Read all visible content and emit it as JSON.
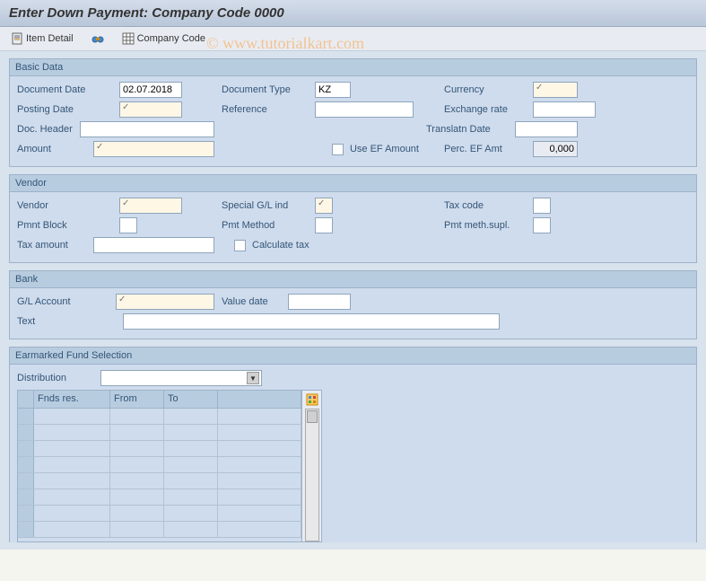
{
  "title": "Enter Down Payment: Company Code 0000",
  "watermark": "© www.tutorialkart.com",
  "toolbar": {
    "item_detail": "Item Detail",
    "company_code": "Company Code"
  },
  "basic_data": {
    "header": "Basic Data",
    "document_date_label": "Document Date",
    "document_date": "02.07.2018",
    "document_type_label": "Document Type",
    "document_type": "KZ",
    "currency_label": "Currency",
    "currency": "",
    "posting_date_label": "Posting Date",
    "posting_date": "",
    "reference_label": "Reference",
    "reference": "",
    "exchange_rate_label": "Exchange rate",
    "exchange_rate": "",
    "doc_header_label": "Doc. Header",
    "doc_header": "",
    "translatn_date_label": "Translatn Date",
    "translatn_date": "",
    "amount_label": "Amount",
    "amount": "",
    "use_ef_amount_label": "Use EF Amount",
    "perc_ef_amt_label": "Perc. EF Amt",
    "perc_ef_amt": "0,000"
  },
  "vendor": {
    "header": "Vendor",
    "vendor_label": "Vendor",
    "vendor": "",
    "special_gl_label": "Special G/L ind",
    "special_gl": "",
    "tax_code_label": "Tax code",
    "tax_code": "",
    "pmnt_block_label": "Pmnt Block",
    "pmnt_block": "",
    "pmt_method_label": "Pmt Method",
    "pmt_method": "",
    "pmt_meth_supl_label": "Pmt meth.supl.",
    "pmt_meth_supl": "",
    "tax_amount_label": "Tax amount",
    "tax_amount": "",
    "calculate_tax_label": "Calculate tax"
  },
  "bank": {
    "header": "Bank",
    "gl_account_label": "G/L Account",
    "gl_account": "",
    "value_date_label": "Value date",
    "value_date": "",
    "text_label": "Text",
    "text": ""
  },
  "earmarked": {
    "header": "Earmarked Fund Selection",
    "distribution_label": "Distribution",
    "distribution": "",
    "col_fnds": "Fnds res.",
    "col_from": "From",
    "col_to": "To",
    "row_count": 8
  },
  "colors": {
    "group_bg": "#cfdced",
    "group_header": "#b8cce0",
    "border": "#9db2c9",
    "label_text": "#335577"
  }
}
